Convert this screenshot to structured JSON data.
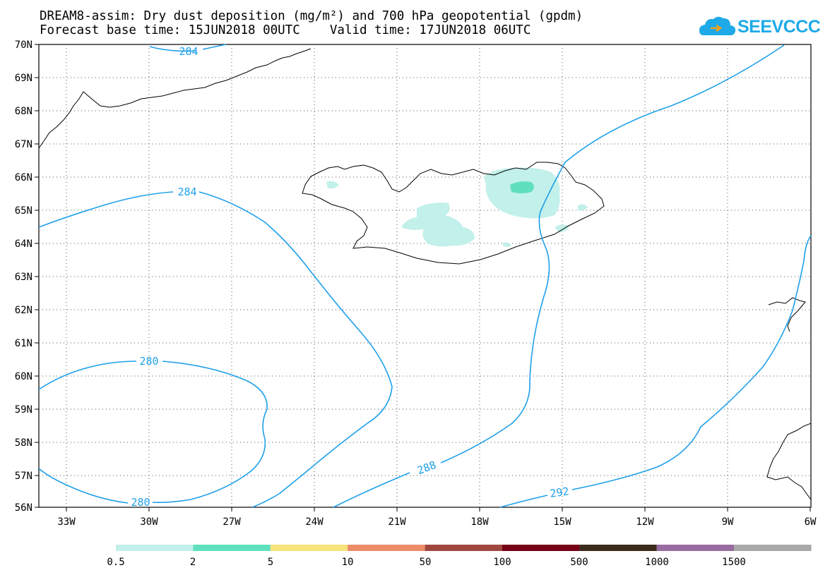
{
  "header": {
    "title_line1": "DREAM8-assim: Dry dust deposition (mg/m²) and 700 hPa geopotential (gpdm)",
    "title_line2": "Forecast base time: 15JUN2018 00UTC    Valid time: 17JUN2018 06UTC"
  },
  "logo": {
    "text": "SEEVCCC",
    "icon": "cloud-icon",
    "color": "#1eaae8"
  },
  "map": {
    "lat_labels": [
      "70N",
      "69N",
      "68N",
      "67N",
      "66N",
      "65N",
      "64N",
      "63N",
      "62N",
      "61N",
      "60N",
      "59N",
      "58N",
      "57N",
      "56N"
    ],
    "lon_labels": [
      "33W",
      "30W",
      "27W",
      "24W",
      "21W",
      "18W",
      "15W",
      "12W",
      "9W",
      "6W"
    ],
    "contour_color": "#1ea0ea",
    "contour_labels": [
      "284",
      "284",
      "280",
      "280",
      "288",
      "292"
    ]
  },
  "legend": {
    "colors": [
      "#c2f0ea",
      "#5fe0bc",
      "#f8e27a",
      "#eb8c68",
      "#a04840",
      "#780018",
      "#3c2a1c",
      "#986ca0",
      "#a8a8a8"
    ],
    "labels": [
      "0.5",
      "2",
      "5",
      "10",
      "50",
      "100",
      "500",
      "1000",
      "1500"
    ]
  }
}
